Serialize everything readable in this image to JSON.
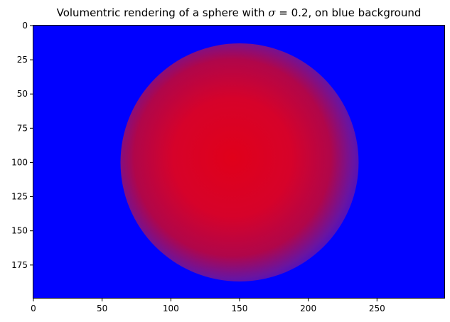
{
  "figure": {
    "title_prefix": "Volumentric rendering of a sphere with ",
    "title_symbol": "σ",
    "title_suffix": " = 0.2, on blue background",
    "background_color": "#0000ff",
    "sphere_center_color": "#e0001a",
    "sphere_edge_color": "#5a1ab8"
  },
  "image_axes": {
    "x_ticks": [
      "0",
      "50",
      "100",
      "150",
      "200",
      "250"
    ],
    "x_tick_values": [
      0,
      50,
      100,
      150,
      200,
      250
    ],
    "y_ticks": [
      "0",
      "25",
      "50",
      "75",
      "100",
      "125",
      "150",
      "175"
    ],
    "y_tick_values": [
      0,
      25,
      50,
      75,
      100,
      125,
      150,
      175
    ],
    "x_extent": [
      0,
      300
    ],
    "y_extent": [
      0,
      200
    ],
    "sphere_center": [
      150,
      100
    ],
    "sphere_radius": 87
  }
}
